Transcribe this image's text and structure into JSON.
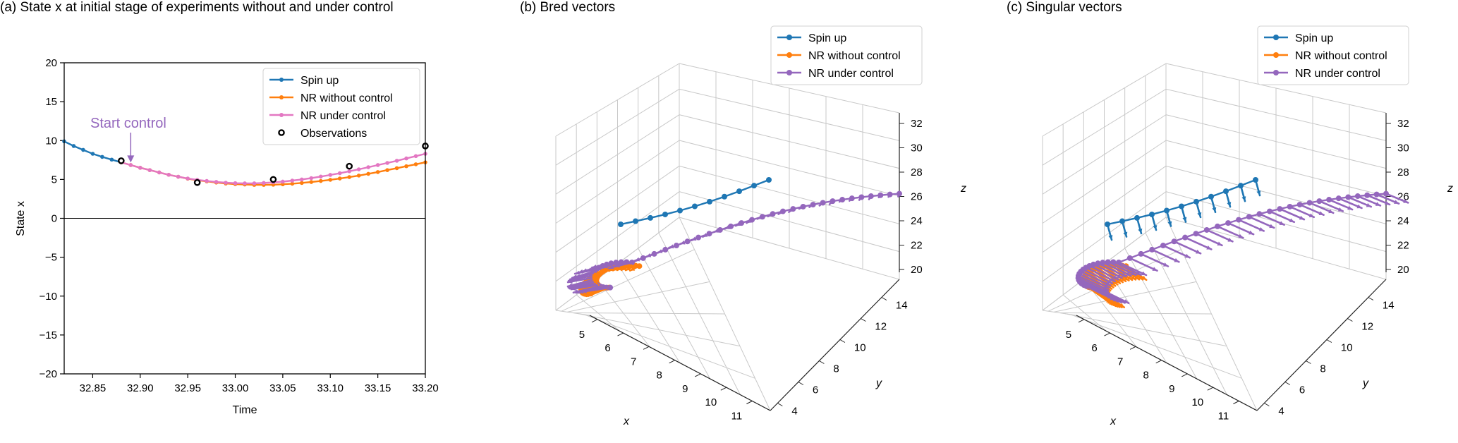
{
  "colors": {
    "spin_up": "#1f77b4",
    "nr_without": "#ff7f0e",
    "nr_under_2d": "#e377c2",
    "nr_under_3d": "#9467bd",
    "annotation": "#9467bd",
    "grid3d": "#c8c8c8"
  },
  "chart_data": [
    {
      "type": "line",
      "panel_title": "(a) State x at initial stage of experiments without and under control",
      "xlabel": "Time",
      "ylabel": "State x",
      "xlim": [
        32.82,
        33.2
      ],
      "ylim": [
        -20,
        20
      ],
      "xticks": [
        "32.85",
        "32.90",
        "32.95",
        "33.00",
        "33.05",
        "33.10",
        "33.15",
        "33.20"
      ],
      "xtick_values": [
        32.85,
        32.9,
        32.95,
        33.0,
        33.05,
        33.1,
        33.15,
        33.2
      ],
      "yticks": [
        "20",
        "15",
        "10",
        "5",
        "0",
        "−5",
        "−10",
        "−15",
        "−20"
      ],
      "ytick_values": [
        20,
        15,
        10,
        5,
        0,
        -5,
        -10,
        -15,
        -20
      ],
      "annotation": {
        "text": "Start control",
        "x": 32.89,
        "y": 7.0
      },
      "series": [
        {
          "name": "Spin up",
          "color_key": "spin_up",
          "x": [
            32.82,
            32.83,
            32.84,
            32.85,
            32.86,
            32.87,
            32.88
          ],
          "y": [
            9.9,
            9.3,
            8.8,
            8.3,
            7.9,
            7.55,
            7.2
          ]
        },
        {
          "name": "NR without control",
          "color_key": "nr_without",
          "x": [
            32.88,
            32.89,
            32.9,
            32.91,
            32.92,
            32.93,
            32.94,
            32.95,
            32.96,
            32.97,
            32.98,
            32.99,
            33.0,
            33.01,
            33.02,
            33.03,
            33.04,
            33.05,
            33.06,
            33.07,
            33.08,
            33.09,
            33.1,
            33.11,
            33.12,
            33.13,
            33.14,
            33.15,
            33.16,
            33.17,
            33.18,
            33.19,
            33.2
          ],
          "y": [
            7.2,
            6.85,
            6.5,
            6.2,
            5.9,
            5.6,
            5.35,
            5.1,
            4.9,
            4.75,
            4.6,
            4.48,
            4.4,
            4.35,
            4.3,
            4.3,
            4.32,
            4.38,
            4.45,
            4.55,
            4.67,
            4.8,
            4.95,
            5.12,
            5.3,
            5.5,
            5.72,
            5.95,
            6.2,
            6.45,
            6.7,
            6.95,
            7.2
          ]
        },
        {
          "name": "NR under control",
          "color_key": "nr_under_2d",
          "x": [
            32.88,
            32.89,
            32.9,
            32.91,
            32.92,
            32.93,
            32.94,
            32.95,
            32.96,
            32.97,
            32.98,
            32.99,
            33.0,
            33.01,
            33.02,
            33.03,
            33.04,
            33.05,
            33.06,
            33.07,
            33.08,
            33.09,
            33.1,
            33.11,
            33.12,
            33.13,
            33.14,
            33.15,
            33.16,
            33.17,
            33.18,
            33.19,
            33.2
          ],
          "y": [
            7.2,
            6.85,
            6.5,
            6.2,
            5.9,
            5.6,
            5.35,
            5.12,
            4.95,
            4.8,
            4.68,
            4.58,
            4.52,
            4.5,
            4.5,
            4.55,
            4.62,
            4.72,
            4.85,
            5.0,
            5.17,
            5.37,
            5.58,
            5.8,
            6.05,
            6.3,
            6.57,
            6.85,
            7.12,
            7.4,
            7.7,
            8.0,
            8.3
          ]
        },
        {
          "name": "Observations",
          "style": "open-circle",
          "x": [
            32.88,
            32.96,
            33.04,
            33.12,
            33.2
          ],
          "y": [
            7.4,
            4.6,
            5.0,
            6.7,
            9.3
          ]
        }
      ],
      "legend": [
        "Spin up",
        "NR without control",
        "NR under control",
        "Observations"
      ],
      "legend_loc": "upper right"
    },
    {
      "type": "scatter",
      "projection": "3d",
      "panel_title": "(b) Bred vectors",
      "xlabel": "x",
      "ylabel": "y",
      "zlabel": "z",
      "xticks": [
        "5",
        "6",
        "7",
        "8",
        "9",
        "10",
        "11"
      ],
      "yticks": [
        "4",
        "6",
        "8",
        "10",
        "12",
        "14"
      ],
      "zticks": [
        "20",
        "22",
        "24",
        "26",
        "28",
        "30",
        "32"
      ],
      "legend": [
        "Spin up",
        "NR without control",
        "NR under control"
      ],
      "legend_loc": "upper right",
      "vector_style": "bred"
    },
    {
      "type": "scatter",
      "projection": "3d",
      "panel_title": "(c) Singular vectors",
      "xlabel": "x",
      "ylabel": "y",
      "zlabel": "z",
      "xticks": [
        "5",
        "6",
        "7",
        "8",
        "9",
        "10",
        "11"
      ],
      "yticks": [
        "4",
        "6",
        "8",
        "10",
        "12",
        "14"
      ],
      "zticks": [
        "20",
        "22",
        "24",
        "26",
        "28",
        "30",
        "32"
      ],
      "legend": [
        "Spin up",
        "NR without control",
        "NR under control"
      ],
      "legend_loc": "upper right",
      "vector_style": "singular"
    }
  ]
}
